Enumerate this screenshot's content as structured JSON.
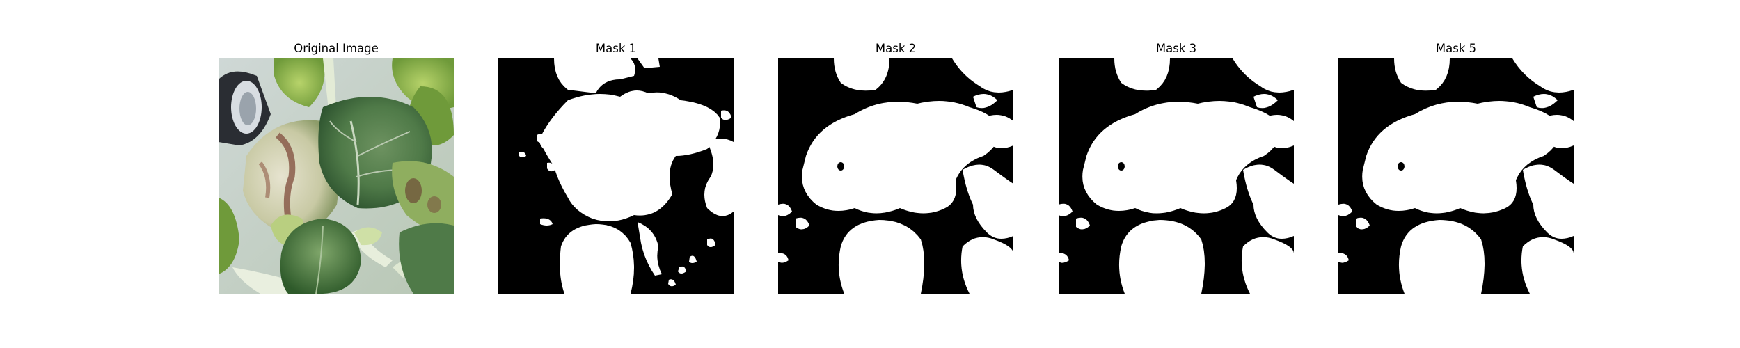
{
  "figure": {
    "panels": [
      {
        "title": "Original Image",
        "kind": "photo"
      },
      {
        "title": "Mask 1",
        "kind": "mask"
      },
      {
        "title": "Mask 2",
        "kind": "mask"
      },
      {
        "title": "Mask 3",
        "kind": "mask"
      },
      {
        "title": "Mask 5",
        "kind": "mask"
      }
    ]
  },
  "colors": {
    "mask_foreground": "#ffffff",
    "mask_background": "#000000",
    "leaf_dark_green": "#3f6b3a",
    "leaf_light_green": "#8fb56a",
    "leaf_pale": "#c9d6b8",
    "stem": "#dfe8d2",
    "pot_dark": "#2a2d33",
    "pot_light": "#d8dde2",
    "spot_brown": "#8a5c4a"
  }
}
